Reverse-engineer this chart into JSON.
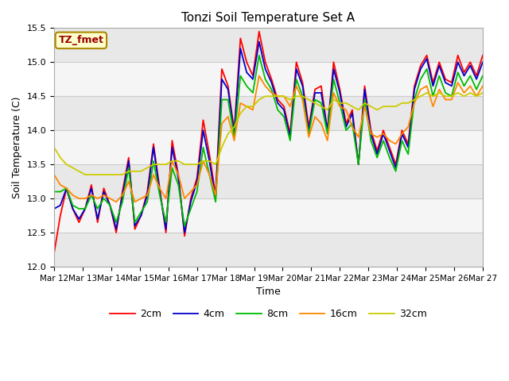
{
  "title": "Tonzi Soil Temperature Set A",
  "xlabel": "Time",
  "ylabel": "Soil Temperature (C)",
  "ylim": [
    12.0,
    15.5
  ],
  "xlim": [
    0,
    15
  ],
  "annotation": "TZ_fmet",
  "legend": [
    "2cm",
    "4cm",
    "8cm",
    "16cm",
    "32cm"
  ],
  "line_colors": [
    "#ff0000",
    "#0000cc",
    "#00bb00",
    "#ff8800",
    "#cccc00"
  ],
  "xtick_labels": [
    "Mar 12",
    "Mar 13",
    "Mar 14",
    "Mar 15",
    "Mar 16",
    "Mar 17",
    "Mar 18",
    "Mar 19",
    "Mar 20",
    "Mar 21",
    "Mar 22",
    "Mar 23",
    "Mar 24",
    "Mar 25",
    "Mar 26",
    "Mar 27"
  ],
  "ytick_vals": [
    12.0,
    12.5,
    13.0,
    13.5,
    14.0,
    14.5,
    15.0,
    15.5
  ],
  "background_color": "#ffffff",
  "band_colors": [
    "#e8e8e8",
    "#f5f5f5"
  ],
  "grid_color": "#cccccc",
  "data_2cm": [
    12.2,
    12.75,
    13.15,
    12.85,
    12.65,
    12.85,
    13.2,
    12.65,
    13.15,
    12.9,
    12.5,
    13.1,
    13.6,
    12.55,
    12.75,
    13.1,
    13.8,
    13.15,
    12.5,
    13.85,
    13.35,
    12.45,
    13.0,
    13.3,
    14.15,
    13.65,
    13.05,
    14.9,
    14.65,
    14.0,
    15.35,
    15.0,
    14.8,
    15.45,
    15.0,
    14.75,
    14.45,
    14.35,
    13.95,
    15.0,
    14.7,
    14.05,
    14.6,
    14.65,
    14.0,
    15.0,
    14.6,
    14.1,
    14.3,
    13.5,
    14.65,
    14.0,
    13.7,
    14.0,
    13.75,
    13.5,
    14.0,
    13.8,
    14.65,
    14.95,
    15.1,
    14.7,
    15.0,
    14.75,
    14.7,
    15.1,
    14.85,
    15.0,
    14.8,
    15.1
  ],
  "data_4cm": [
    12.85,
    12.9,
    13.15,
    12.85,
    12.7,
    12.85,
    13.15,
    12.7,
    13.1,
    12.9,
    12.55,
    13.05,
    13.55,
    12.6,
    12.75,
    13.05,
    13.75,
    13.1,
    12.55,
    13.75,
    13.3,
    12.5,
    12.95,
    13.25,
    14.0,
    13.55,
    13.0,
    14.75,
    14.6,
    13.95,
    15.2,
    14.85,
    14.75,
    15.3,
    14.9,
    14.7,
    14.4,
    14.3,
    13.9,
    14.9,
    14.65,
    14.0,
    14.55,
    14.55,
    14.0,
    14.9,
    14.55,
    14.05,
    14.25,
    13.5,
    14.6,
    13.95,
    13.65,
    13.95,
    13.7,
    13.45,
    13.95,
    13.75,
    14.6,
    14.9,
    15.05,
    14.65,
    14.95,
    14.7,
    14.65,
    15.0,
    14.8,
    14.95,
    14.75,
    15.0
  ],
  "data_8cm": [
    13.1,
    13.1,
    13.15,
    12.9,
    12.85,
    12.85,
    13.05,
    12.85,
    13.0,
    12.9,
    12.65,
    12.95,
    13.45,
    12.65,
    12.8,
    12.95,
    13.55,
    13.05,
    12.65,
    13.45,
    13.2,
    12.6,
    12.85,
    13.1,
    13.75,
    13.35,
    12.95,
    14.45,
    14.45,
    13.9,
    14.8,
    14.65,
    14.55,
    15.1,
    14.75,
    14.6,
    14.3,
    14.2,
    13.85,
    14.75,
    14.5,
    13.95,
    14.45,
    14.4,
    13.95,
    14.75,
    14.4,
    14.0,
    14.1,
    13.5,
    14.45,
    13.85,
    13.6,
    13.85,
    13.6,
    13.4,
    13.85,
    13.65,
    14.45,
    14.75,
    14.9,
    14.5,
    14.8,
    14.55,
    14.5,
    14.85,
    14.65,
    14.8,
    14.6,
    14.8
  ],
  "data_16cm": [
    13.35,
    13.2,
    13.15,
    13.05,
    13.0,
    13.0,
    13.05,
    13.0,
    13.05,
    13.0,
    12.95,
    13.05,
    13.25,
    12.95,
    13.0,
    13.05,
    13.35,
    13.15,
    13.0,
    13.55,
    13.35,
    13.0,
    13.1,
    13.2,
    13.55,
    13.35,
    13.05,
    14.1,
    14.2,
    13.85,
    14.4,
    14.35,
    14.3,
    14.8,
    14.65,
    14.55,
    14.5,
    14.5,
    14.35,
    14.65,
    14.45,
    13.9,
    14.2,
    14.1,
    13.85,
    14.55,
    14.35,
    14.3,
    14.05,
    13.9,
    14.35,
    13.95,
    13.9,
    13.95,
    13.85,
    13.8,
    13.95,
    14.05,
    14.4,
    14.6,
    14.65,
    14.35,
    14.6,
    14.45,
    14.45,
    14.7,
    14.55,
    14.65,
    14.5,
    14.65
  ],
  "data_32cm": [
    13.75,
    13.6,
    13.5,
    13.45,
    13.4,
    13.35,
    13.35,
    13.35,
    13.35,
    13.35,
    13.35,
    13.35,
    13.4,
    13.4,
    13.4,
    13.45,
    13.5,
    13.5,
    13.5,
    13.55,
    13.55,
    13.5,
    13.5,
    13.5,
    13.55,
    13.55,
    13.5,
    13.75,
    13.95,
    14.05,
    14.25,
    14.35,
    14.35,
    14.45,
    14.5,
    14.5,
    14.5,
    14.5,
    14.45,
    14.5,
    14.5,
    14.45,
    14.4,
    14.35,
    14.3,
    14.45,
    14.4,
    14.4,
    14.35,
    14.3,
    14.4,
    14.35,
    14.3,
    14.35,
    14.35,
    14.35,
    14.4,
    14.4,
    14.45,
    14.5,
    14.55,
    14.5,
    14.55,
    14.5,
    14.5,
    14.55,
    14.5,
    14.55,
    14.5,
    14.55
  ]
}
